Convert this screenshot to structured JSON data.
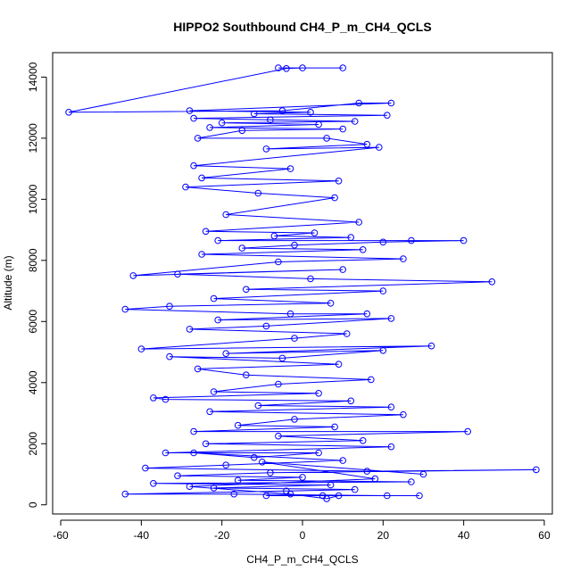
{
  "chart_data": {
    "type": "line",
    "title": "HIPPO2 Southbound CH4_P_m_CH4_QCLS",
    "xlabel": "CH4_P_m_CH4_QCLS",
    "ylabel": "Altitude (m)",
    "xlim": [
      -62,
      62
    ],
    "ylim": [
      -300,
      14800
    ],
    "x_ticks": [
      -60,
      -40,
      -20,
      0,
      20,
      40,
      60
    ],
    "y_ticks": [
      0,
      2000,
      4000,
      6000,
      8000,
      10000,
      12000,
      14000
    ],
    "markers": "open-circle",
    "grid": false,
    "legend": "none",
    "series": [
      {
        "color": "#0000ff",
        "points": [
          [
            -6,
            14300
          ],
          [
            10,
            14300
          ],
          [
            0,
            14300
          ],
          [
            -4,
            14280
          ],
          [
            -58,
            12850
          ],
          [
            -5,
            12900
          ],
          [
            14,
            13150
          ],
          [
            22,
            13150
          ],
          [
            -28,
            12900
          ],
          [
            2,
            12850
          ],
          [
            -12,
            12800
          ],
          [
            21,
            12750
          ],
          [
            -27,
            12650
          ],
          [
            -8,
            12600
          ],
          [
            13,
            12550
          ],
          [
            -20,
            12500
          ],
          [
            4,
            12450
          ],
          [
            -23,
            12350
          ],
          [
            10,
            12300
          ],
          [
            -15,
            12250
          ],
          [
            -26,
            12000
          ],
          [
            6,
            12000
          ],
          [
            16,
            11800
          ],
          [
            -9,
            11650
          ],
          [
            19,
            11700
          ],
          [
            -27,
            11100
          ],
          [
            -3,
            11000
          ],
          [
            -25,
            10700
          ],
          [
            9,
            10600
          ],
          [
            -29,
            10400
          ],
          [
            -11,
            10200
          ],
          [
            8,
            10050
          ],
          [
            -19,
            9500
          ],
          [
            14,
            9250
          ],
          [
            -24,
            8950
          ],
          [
            3,
            8900
          ],
          [
            -7,
            8800
          ],
          [
            12,
            8750
          ],
          [
            -21,
            8650
          ],
          [
            27,
            8650
          ],
          [
            40,
            8650
          ],
          [
            20,
            8600
          ],
          [
            -2,
            8500
          ],
          [
            -15,
            8400
          ],
          [
            15,
            8350
          ],
          [
            -25,
            8200
          ],
          [
            25,
            8050
          ],
          [
            -6,
            7950
          ],
          [
            -42,
            7500
          ],
          [
            10,
            7700
          ],
          [
            -31,
            7550
          ],
          [
            2,
            7400
          ],
          [
            47,
            7300
          ],
          [
            -14,
            7050
          ],
          [
            20,
            7000
          ],
          [
            -22,
            6750
          ],
          [
            7,
            6600
          ],
          [
            -33,
            6500
          ],
          [
            -44,
            6400
          ],
          [
            -3,
            6250
          ],
          [
            16,
            6250
          ],
          [
            -21,
            6050
          ],
          [
            22,
            6100
          ],
          [
            -9,
            5850
          ],
          [
            -28,
            5750
          ],
          [
            11,
            5600
          ],
          [
            -2,
            5450
          ],
          [
            -40,
            5100
          ],
          [
            32,
            5200
          ],
          [
            -19,
            4950
          ],
          [
            20,
            5050
          ],
          [
            -5,
            4800
          ],
          [
            -33,
            4850
          ],
          [
            9,
            4600
          ],
          [
            -26,
            4450
          ],
          [
            -14,
            4250
          ],
          [
            17,
            4100
          ],
          [
            -6,
            3950
          ],
          [
            -22,
            3700
          ],
          [
            4,
            3650
          ],
          [
            -37,
            3500
          ],
          [
            -34,
            3450
          ],
          [
            12,
            3400
          ],
          [
            -11,
            3250
          ],
          [
            22,
            3200
          ],
          [
            -23,
            3050
          ],
          [
            25,
            2950
          ],
          [
            -2,
            2800
          ],
          [
            -16,
            2600
          ],
          [
            8,
            2550
          ],
          [
            -27,
            2400
          ],
          [
            41,
            2400
          ],
          [
            -6,
            2250
          ],
          [
            15,
            2100
          ],
          [
            -24,
            2000
          ],
          [
            22,
            1900
          ],
          [
            -34,
            1700
          ],
          [
            4,
            1700
          ],
          [
            -12,
            1550
          ],
          [
            -27,
            1700
          ],
          [
            10,
            1450
          ],
          [
            -19,
            1300
          ],
          [
            -39,
            1200
          ],
          [
            16,
            1100
          ],
          [
            58,
            1150
          ],
          [
            -8,
            1050
          ],
          [
            -31,
            950
          ],
          [
            0,
            900
          ],
          [
            -16,
            800
          ],
          [
            27,
            750
          ],
          [
            -37,
            700
          ],
          [
            7,
            650
          ],
          [
            -22,
            550
          ],
          [
            13,
            500
          ],
          [
            -4,
            450
          ],
          [
            -44,
            350
          ],
          [
            -17,
            350
          ],
          [
            21,
            300
          ],
          [
            5,
            300
          ],
          [
            -9,
            300
          ],
          [
            29,
            300
          ],
          [
            9,
            300
          ],
          [
            6,
            200
          ],
          [
            -3,
            350
          ],
          [
            -28,
            600
          ],
          [
            18,
            850
          ],
          [
            -10,
            1400
          ],
          [
            30,
            1000
          ]
        ]
      }
    ]
  }
}
